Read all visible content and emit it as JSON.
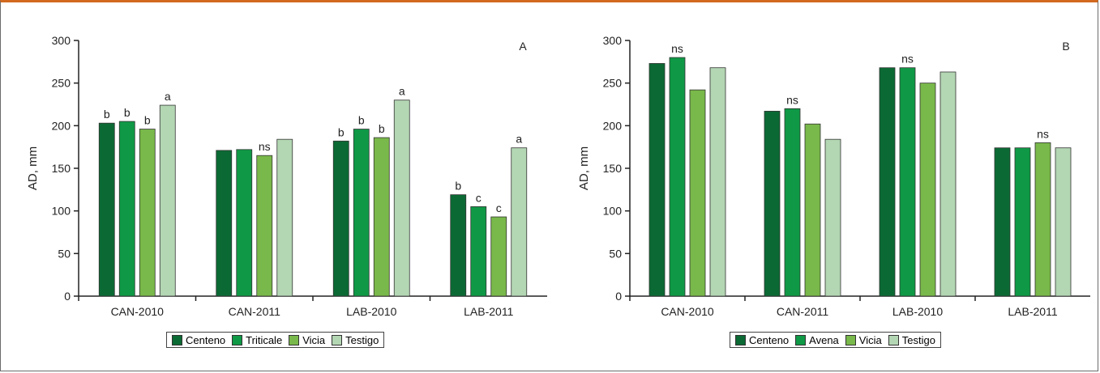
{
  "chart_data": [
    {
      "type": "bar",
      "panel_label": "A",
      "ylabel": "AD, mm",
      "ylim": [
        0,
        300
      ],
      "yticks": [
        0,
        50,
        100,
        150,
        200,
        250,
        300
      ],
      "categories": [
        "CAN-2010",
        "CAN-2011",
        "LAB-2010",
        "LAB-2011"
      ],
      "legend_placement": "bottom-center",
      "series": [
        {
          "name": "Centeno",
          "color": "#0b6a34",
          "values": [
            203,
            171,
            182,
            119
          ]
        },
        {
          "name": "Triticale",
          "color": "#0f9946",
          "values": [
            205,
            172,
            196,
            105
          ]
        },
        {
          "name": "Vicia",
          "color": "#79b84a",
          "values": [
            196,
            165,
            186,
            93
          ]
        },
        {
          "name": "Testigo",
          "color": "#b3d6b3",
          "values": [
            224,
            184,
            230,
            174
          ]
        }
      ],
      "bar_labels": [
        [
          "b",
          "b",
          "b",
          "a"
        ],
        [
          "",
          "",
          "ns",
          ""
        ],
        [
          "b",
          "b",
          "b",
          "a"
        ],
        [
          "b",
          "c",
          "c",
          "a"
        ]
      ]
    },
    {
      "type": "bar",
      "panel_label": "B",
      "ylabel": "AD, mm",
      "ylim": [
        0,
        300
      ],
      "yticks": [
        0,
        50,
        100,
        150,
        200,
        250,
        300
      ],
      "categories": [
        "CAN-2010",
        "CAN-2011",
        "LAB-2010",
        "LAB-2011"
      ],
      "legend_placement": "bottom-center",
      "series": [
        {
          "name": "Centeno",
          "color": "#0b6a34",
          "values": [
            273,
            217,
            268,
            174
          ]
        },
        {
          "name": "Avena",
          "color": "#0f9946",
          "values": [
            280,
            220,
            268,
            174
          ]
        },
        {
          "name": "Vicia",
          "color": "#79b84a",
          "values": [
            242,
            202,
            250,
            180
          ]
        },
        {
          "name": "Testigo",
          "color": "#b3d6b3",
          "values": [
            268,
            184,
            263,
            174
          ]
        }
      ],
      "bar_labels": [
        [
          "",
          "ns",
          "",
          ""
        ],
        [
          "",
          "ns",
          "",
          ""
        ],
        [
          "",
          "ns",
          "",
          ""
        ],
        [
          "",
          "",
          "ns",
          ""
        ]
      ]
    }
  ]
}
